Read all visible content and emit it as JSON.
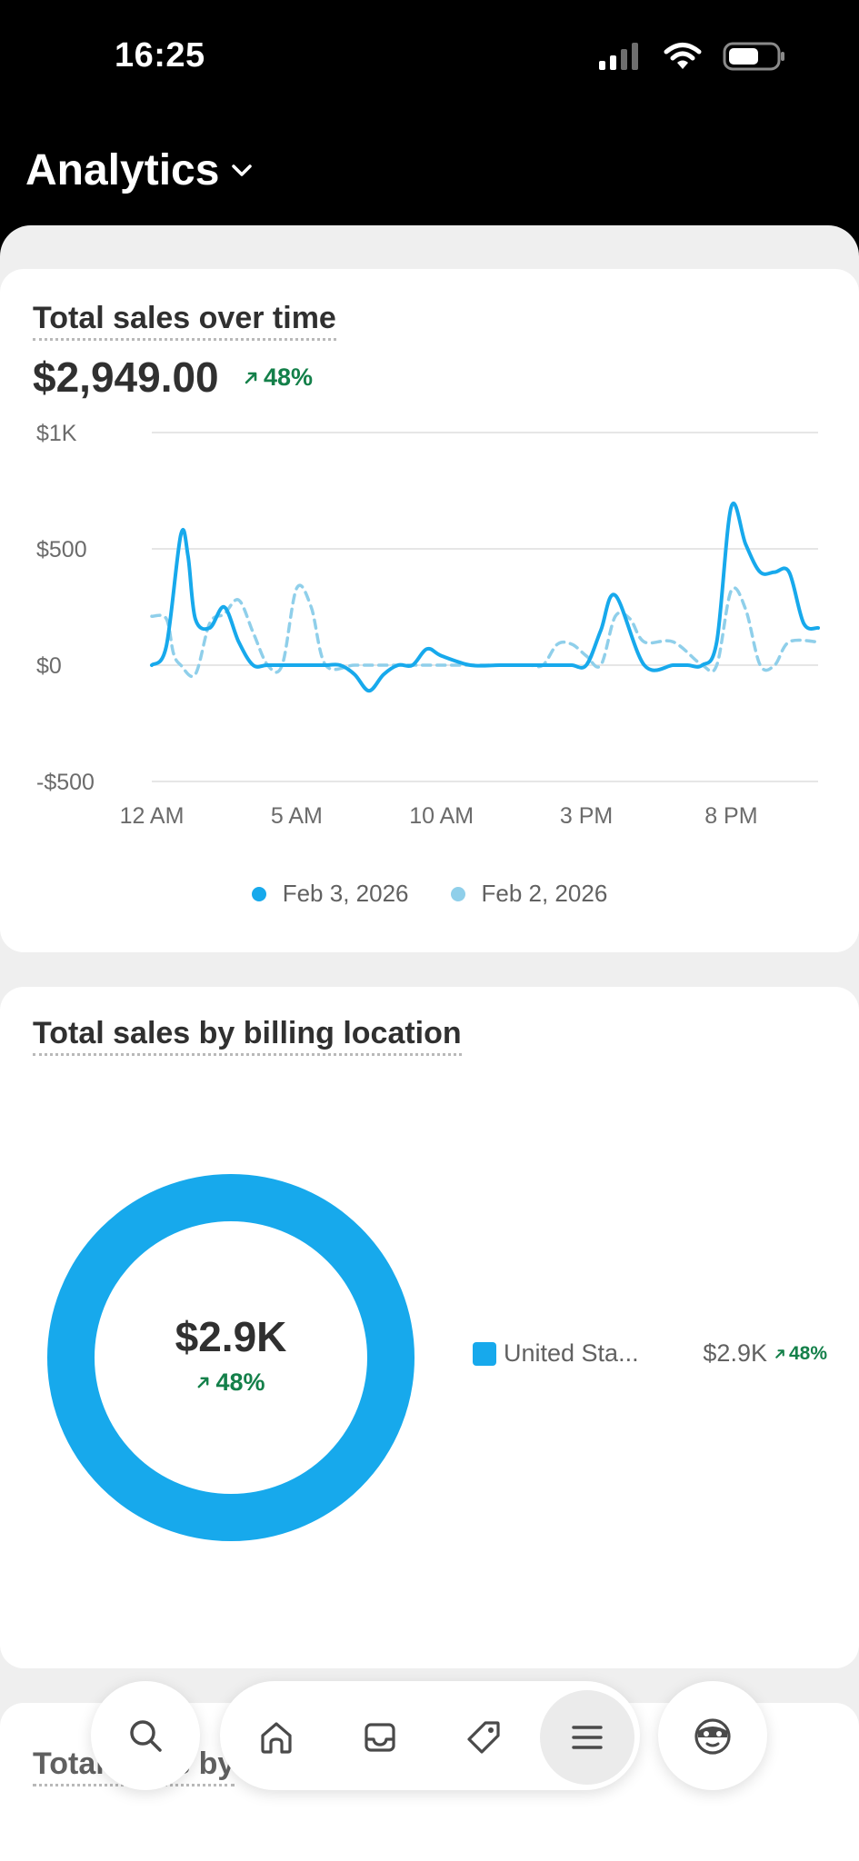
{
  "status_bar": {
    "time": "16:25",
    "icons": [
      "signal-icon",
      "wifi-icon",
      "battery-icon"
    ]
  },
  "header": {
    "title": "Analytics",
    "dropdown_icon": "chevron-down-icon"
  },
  "sales_over_time": {
    "title": "Total sales over time",
    "total": "$2,949.00",
    "delta": "48%",
    "chart_data": {
      "type": "line",
      "title": "Total sales over time",
      "xlabel": "",
      "ylabel": "",
      "ylim": [
        -500,
        1000
      ],
      "y_ticks": [
        "$1K",
        "$500",
        "$0",
        "-$500"
      ],
      "y_tick_values": [
        1000,
        500,
        0,
        -500
      ],
      "x_tick_labels": [
        "12 AM",
        "5 AM",
        "10 AM",
        "3 PM",
        "8 PM"
      ],
      "x_tick_values": [
        0,
        5,
        10,
        15,
        20
      ],
      "xlim": [
        0,
        23
      ],
      "series": [
        {
          "name": "Feb 3, 2026",
          "style": "solid",
          "color": "#17a9ec",
          "x": [
            0,
            0.5,
            1,
            1.25,
            1.5,
            2,
            2.5,
            3,
            3.5,
            4,
            5,
            6,
            6.5,
            7,
            7.5,
            8,
            8.5,
            9,
            9.5,
            10,
            11,
            12,
            13,
            14,
            14.5,
            15,
            15.5,
            16,
            17,
            18,
            18.5,
            19,
            19.5,
            20,
            20.5,
            21,
            21.5,
            22,
            22.5,
            23
          ],
          "y": [
            0,
            80,
            560,
            470,
            200,
            160,
            250,
            100,
            0,
            0,
            0,
            0,
            0,
            -40,
            -110,
            -40,
            0,
            0,
            70,
            40,
            0,
            0,
            0,
            0,
            0,
            0,
            150,
            300,
            0,
            0,
            0,
            0,
            100,
            680,
            520,
            400,
            400,
            400,
            180,
            160
          ]
        },
        {
          "name": "Feb 2, 2026",
          "style": "dashed",
          "color": "#8fcfea",
          "x": [
            0,
            0.5,
            0.75,
            1,
            1.5,
            2,
            2.5,
            3,
            3.5,
            4,
            4.5,
            5,
            5.5,
            6,
            7,
            8,
            9,
            10,
            11,
            12,
            13,
            13.5,
            14,
            14.5,
            15,
            15.5,
            16,
            16.5,
            17,
            18,
            19,
            19.5,
            20,
            20.5,
            21,
            21.5,
            22,
            23
          ],
          "y": [
            210,
            200,
            50,
            0,
            -40,
            180,
            220,
            280,
            140,
            0,
            0,
            330,
            250,
            0,
            0,
            0,
            0,
            0,
            0,
            0,
            0,
            0,
            90,
            90,
            40,
            0,
            210,
            200,
            100,
            100,
            0,
            0,
            320,
            240,
            0,
            0,
            100,
            100
          ]
        }
      ],
      "legend": [
        "Feb 3, 2026",
        "Feb 2, 2026"
      ],
      "legend_position": "bottom-center"
    }
  },
  "sales_by_location": {
    "title": "Total sales by billing location",
    "total": "$2.9K",
    "delta": "48%",
    "chart_data": {
      "type": "pie",
      "title": "Total sales by billing location",
      "categories": [
        "United Sta..."
      ],
      "values": [
        2949
      ],
      "colors": [
        "#17a9ec"
      ]
    },
    "rows": [
      {
        "name": "United Sta...",
        "value": "$2.9K",
        "delta": "48%"
      }
    ]
  },
  "third_card": {
    "title": "Total sales by"
  },
  "bottom_nav": {
    "items": [
      {
        "name": "search",
        "icon": "search-icon"
      },
      {
        "name": "home",
        "icon": "home-icon"
      },
      {
        "name": "inbox",
        "icon": "inbox-icon"
      },
      {
        "name": "products",
        "icon": "tag-icon"
      },
      {
        "name": "menu",
        "icon": "menu-icon",
        "active": true
      },
      {
        "name": "account",
        "icon": "avatar-icon"
      }
    ]
  }
}
